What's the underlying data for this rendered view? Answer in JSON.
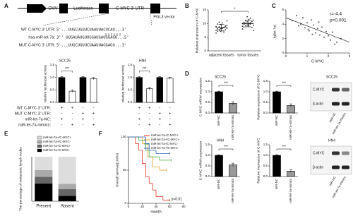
{
  "panels": [
    "A",
    "B",
    "C",
    "D",
    "E",
    "F"
  ],
  "diagram": {
    "parts": [
      "CMV",
      "Luciferase",
      "C-MYC 3' UTR"
    ],
    "vector": "PGL3 vector",
    "sequences": [
      {
        "label": "WT C-MYC 3' UTR:",
        "seq": "5'...UUGCUGUUCUAAUUACUCAU...3'"
      },
      {
        "label": "hsa-miR-let-7a:",
        "seq": "3'' UUGAUAUGUUGGAUGAUGGAGU...5'"
      },
      {
        "label": "MUT C-MYC 3' UTR:",
        "seq": "5'...UUGCUGUUCUAAUUAGGAGU...3'"
      }
    ],
    "conditions": [
      {
        "label": "WT C-MYC 3' UTR:",
        "signs": [
          "+",
          "+",
          "-",
          "-",
          "+",
          "+",
          "-",
          "-"
        ]
      },
      {
        "label": "MUT C-MYC 3' UTR:",
        "signs": [
          "-",
          "-",
          "+",
          "+",
          "-",
          "-",
          "+",
          "+"
        ]
      },
      {
        "label": "miR-let-7a-NC:",
        "signs": [
          "+",
          "-",
          "+",
          "-",
          "+",
          "-",
          "+",
          "-"
        ]
      },
      {
        "label": "miR-let-7a-mimics:",
        "signs": [
          "-",
          "+",
          "-",
          "+",
          "-",
          "+",
          "-",
          "+"
        ]
      }
    ]
  },
  "blots": [
    {
      "title": "SCC25",
      "bands": [
        "C-MYC",
        "β-actin"
      ],
      "lanes": [
        "miR-NC",
        "miR-let-7a-mimics"
      ]
    },
    {
      "title": "HN4",
      "bands": [
        "C-MYC",
        "β-actin"
      ],
      "lanes": [
        "miR-NC",
        "miR-let-7a-mimics"
      ]
    }
  ],
  "chart_data": [
    {
      "type": "bar",
      "title": "SCC25",
      "ylabel": "relative luciferase activity",
      "values": [
        1,
        0.45,
        1,
        0.95
      ],
      "errors": [
        0.03,
        0.05,
        0.04,
        0.05
      ],
      "colors": [
        "#000000",
        "#ffffff",
        "#000000",
        "#ffffff"
      ],
      "ylim": [
        0,
        1.5
      ],
      "yticks": [
        {
          "value": 0,
          "label": "0.0"
        },
        {
          "value": 0.5,
          "label": "0.5"
        },
        {
          "value": 1,
          "label": "1.0"
        },
        {
          "value": 1.5,
          "label": "1.5"
        }
      ],
      "annotations": [
        "***"
      ]
    },
    {
      "type": "bar",
      "title": "HN4",
      "ylabel": "relative luciferase activity",
      "values": [
        1,
        0.55,
        1,
        0.97
      ],
      "errors": [
        0.03,
        0.05,
        0.04,
        0.04
      ],
      "colors": [
        "#000000",
        "#ffffff",
        "#000000",
        "#ffffff"
      ],
      "ylim": [
        0,
        1.5
      ],
      "yticks": [
        {
          "value": 0,
          "label": "0.0"
        },
        {
          "value": 0.5,
          "label": "0.5"
        },
        {
          "value": 1,
          "label": "1.0"
        },
        {
          "value": 1.5,
          "label": "1.5"
        }
      ],
      "annotations": [
        "***"
      ]
    },
    {
      "type": "strip",
      "ylabel": "Relative expression of C-MYC",
      "categories": [
        "adjacent tissues",
        "tumor tissues"
      ],
      "series": [
        {
          "values": [
            6.5,
            7.2,
            7.8,
            8.1,
            8.4,
            8.6,
            9.0,
            9.3,
            7.5,
            8.0,
            8.8,
            9.6,
            10.2,
            6.9,
            7.7,
            8.3,
            8.9,
            9.8,
            10.5,
            7.1,
            8.2,
            8.5,
            9.1,
            11.0
          ],
          "mean": 8.5,
          "sd": 1.2
        },
        {
          "values": [
            8.0,
            8.7,
            9.2,
            9.5,
            9.9,
            10.3,
            10.8,
            11.2,
            9.0,
            9.7,
            10.1,
            10.6,
            11.5,
            12.0,
            8.5,
            9.4,
            10.0,
            10.4,
            11.0,
            12.5,
            9.3,
            9.8,
            10.7,
            7.5
          ],
          "mean": 10,
          "sd": 1.2
        }
      ],
      "color": "#333333",
      "ylim": [
        0,
        15
      ],
      "yticks": [
        0,
        5,
        10,
        15
      ],
      "annotations": [
        "*"
      ]
    },
    {
      "type": "scatter",
      "xlabel": "C-MYC",
      "ylabel": "lg(let-7a)",
      "x": [
        0.3,
        0.5,
        0.6,
        0.8,
        0.9,
        1.0,
        1.1,
        1.2,
        1.3,
        1.4,
        1.5,
        1.6,
        1.7,
        1.8,
        1.9,
        2.0,
        2.1,
        2.2,
        2.4,
        2.6,
        0.7,
        1.25,
        1.55,
        2.3,
        1.05
      ],
      "y": [
        4.5,
        5.2,
        3.8,
        4.9,
        3.5,
        4.2,
        3.1,
        4.6,
        3.9,
        2.8,
        3.4,
        2.5,
        3.6,
        2.2,
        3.0,
        2.4,
        1.8,
        2.9,
        1.5,
        2.0,
        4.0,
        2.6,
        4.3,
        1.2,
        3.3
      ],
      "trendline": {
        "x": [
          0,
          3
        ],
        "y": [
          4.9,
          1.5
        ]
      },
      "color": "#555555",
      "xlim": [
        0,
        3
      ],
      "xticks": [
        0,
        1,
        2,
        3
      ],
      "ylim": [
        0,
        6
      ],
      "yticks": [
        0,
        2,
        4,
        6
      ],
      "annotations": [
        "r=-4.4",
        "p=0.001"
      ]
    },
    {
      "type": "bar",
      "title": "SCC25",
      "ylabel": "C-MYC mRNA expression",
      "categories": [
        "miR-NC",
        "miR-let-7a-mimics"
      ],
      "values": [
        1,
        0.45
      ],
      "errors": [
        0.03,
        0.08
      ],
      "colors": [
        "#000000",
        "#999999"
      ],
      "ylim": [
        0,
        1.5
      ],
      "yticks": [
        {
          "value": 0,
          "label": "0.0"
        },
        {
          "value": 0.5,
          "label": "0.5"
        },
        {
          "value": 1,
          "label": "1.0"
        },
        {
          "value": 1.5,
          "label": "1.5"
        }
      ],
      "annotations": [
        "***"
      ]
    },
    {
      "type": "bar",
      "ylabel": "Relative expression of C-MYC",
      "categories": [
        "miR-NC",
        "miR-let-7a-mimics"
      ],
      "values": [
        1,
        0.35
      ],
      "errors": [
        0.03,
        0.08
      ],
      "colors": [
        "#000000",
        "#999999"
      ],
      "ylim": [
        0,
        1.5
      ],
      "yticks": [
        {
          "value": 0,
          "label": "0.0"
        },
        {
          "value": 0.5,
          "label": "0.5"
        },
        {
          "value": 1,
          "label": "1.0"
        },
        {
          "value": 1.5,
          "label": "1.5"
        }
      ],
      "annotations": [
        "***"
      ]
    },
    {
      "type": "bar",
      "title": "HN4",
      "ylabel": "C-MYC mRNA expression",
      "categories": [
        "miR-NC",
        "miR-let-7a-mimics"
      ],
      "values": [
        1,
        0.55
      ],
      "errors": [
        0.03,
        0.08
      ],
      "colors": [
        "#000000",
        "#999999"
      ],
      "ylim": [
        0,
        1.5
      ],
      "yticks": [
        {
          "value": 0,
          "label": "0.0"
        },
        {
          "value": 0.5,
          "label": "0.5"
        },
        {
          "value": 1,
          "label": "1.0"
        },
        {
          "value": 1.5,
          "label": "1.5"
        }
      ],
      "annotations": [
        "***"
      ]
    },
    {
      "type": "bar",
      "ylabel": "Relative expression of C-MYC",
      "categories": [
        "miR-NC",
        "miR-let-7a-mimics"
      ],
      "values": [
        1,
        0.25
      ],
      "errors": [
        0.03,
        0.06
      ],
      "colors": [
        "#000000",
        "#999999"
      ],
      "ylim": [
        0,
        1.5
      ],
      "yticks": [
        {
          "value": 0,
          "label": "0.0"
        },
        {
          "value": 0.5,
          "label": "0.5"
        },
        {
          "value": 1,
          "label": "1.0"
        },
        {
          "value": 1.5,
          "label": "1.5"
        }
      ],
      "annotations": [
        "***"
      ]
    },
    {
      "type": "stacked",
      "ylabel": "The percentage of metastatic lymph nodes",
      "categories": [
        "Present",
        "Absent"
      ],
      "series": [
        {
          "name": "miR-let-7a+/C-MYC+",
          "color": "#dddddd",
          "values": [
            30,
            61
          ]
        },
        {
          "name": "miR-let-7a+/C-MYC-",
          "color": "#aaaaaa",
          "values": [
            15,
            12
          ]
        },
        {
          "name": "miR-let-7a-/C-MYC+",
          "color": "#666666",
          "values": [
            15,
            15
          ]
        },
        {
          "name": "miR-let-7a-/C-MYC-",
          "color": "#000000",
          "values": [
            40,
            12
          ]
        }
      ],
      "ylim": [
        0,
        100
      ]
    },
    {
      "type": "survival",
      "ylabel": "Overall survival(100%)",
      "xlabel": "month",
      "xlim": [
        0,
        80
      ],
      "xticks": [
        0,
        20,
        40,
        60,
        80
      ],
      "ylim": [
        0,
        100
      ],
      "yticks": [
        0,
        50,
        100
      ],
      "annotations": [
        "p<0.01"
      ],
      "series": [
        {
          "name": "miR-let-7a-/C-MYC+",
          "color": "#e03020",
          "x": [
            0,
            10,
            15,
            20,
            25,
            30,
            35,
            40,
            50,
            60
          ],
          "y": [
            100,
            90,
            80,
            60,
            40,
            30,
            20,
            10,
            5,
            5
          ]
        },
        {
          "name": "miR-let-7a+/C-MYC+",
          "color": "#e8a020",
          "x": [
            0,
            20,
            28,
            35,
            45,
            55
          ],
          "y": [
            100,
            90,
            70,
            55,
            50,
            50
          ]
        },
        {
          "name": "miR-let-7a-/C-MYC-",
          "color": "#40a040",
          "x": [
            0,
            15,
            25,
            30,
            45,
            62
          ],
          "y": [
            100,
            95,
            80,
            70,
            65,
            65
          ]
        },
        {
          "name": "miR-let-7a+/C-MYC-",
          "color": "#3060c0",
          "x": [
            0,
            25,
            30,
            40,
            60
          ],
          "y": [
            100,
            90,
            80,
            75,
            75
          ]
        }
      ]
    }
  ]
}
